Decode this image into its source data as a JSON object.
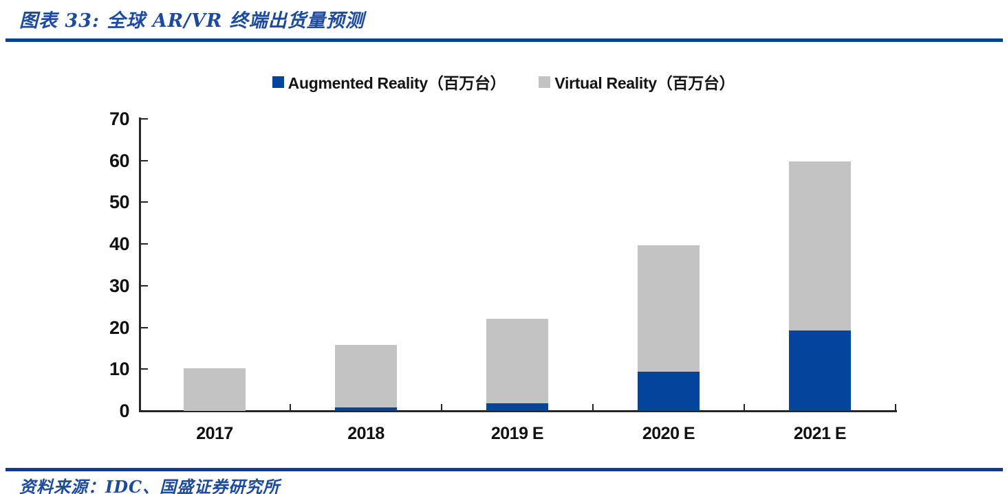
{
  "page": {
    "title": "图表 33:  全球 AR/VR 终端出货量预测",
    "source": "资料来源：IDC、国盛证券研究所",
    "accent_color": "#0a3d94",
    "title_color": "#1c4a9c"
  },
  "chart_data": {
    "type": "bar",
    "subtype": "stacked",
    "title": "全球 AR/VR 终端出货量预测",
    "categories": [
      "2017",
      "2018",
      "2019 E",
      "2020 E",
      "2021 E"
    ],
    "series": [
      {
        "name": "Augmented Reality（百万台）",
        "color": "#04449c",
        "values": [
          0,
          0.8,
          1.8,
          9.4,
          19.3
        ]
      },
      {
        "name": "Virtual Reality（百万台）",
        "color": "#c3c3c3",
        "values": [
          10.2,
          15.0,
          20.2,
          30.3,
          40.5
        ]
      }
    ],
    "totals": [
      10.2,
      15.8,
      22.0,
      39.7,
      59.8
    ],
    "xlabel": "",
    "ylabel": "",
    "ylim": [
      0,
      70
    ],
    "ytick_step": 10,
    "ytick_labels": [
      "0",
      "10",
      "20",
      "30",
      "40",
      "50",
      "60",
      "70"
    ],
    "grid": false,
    "legend_position": "top-center"
  }
}
